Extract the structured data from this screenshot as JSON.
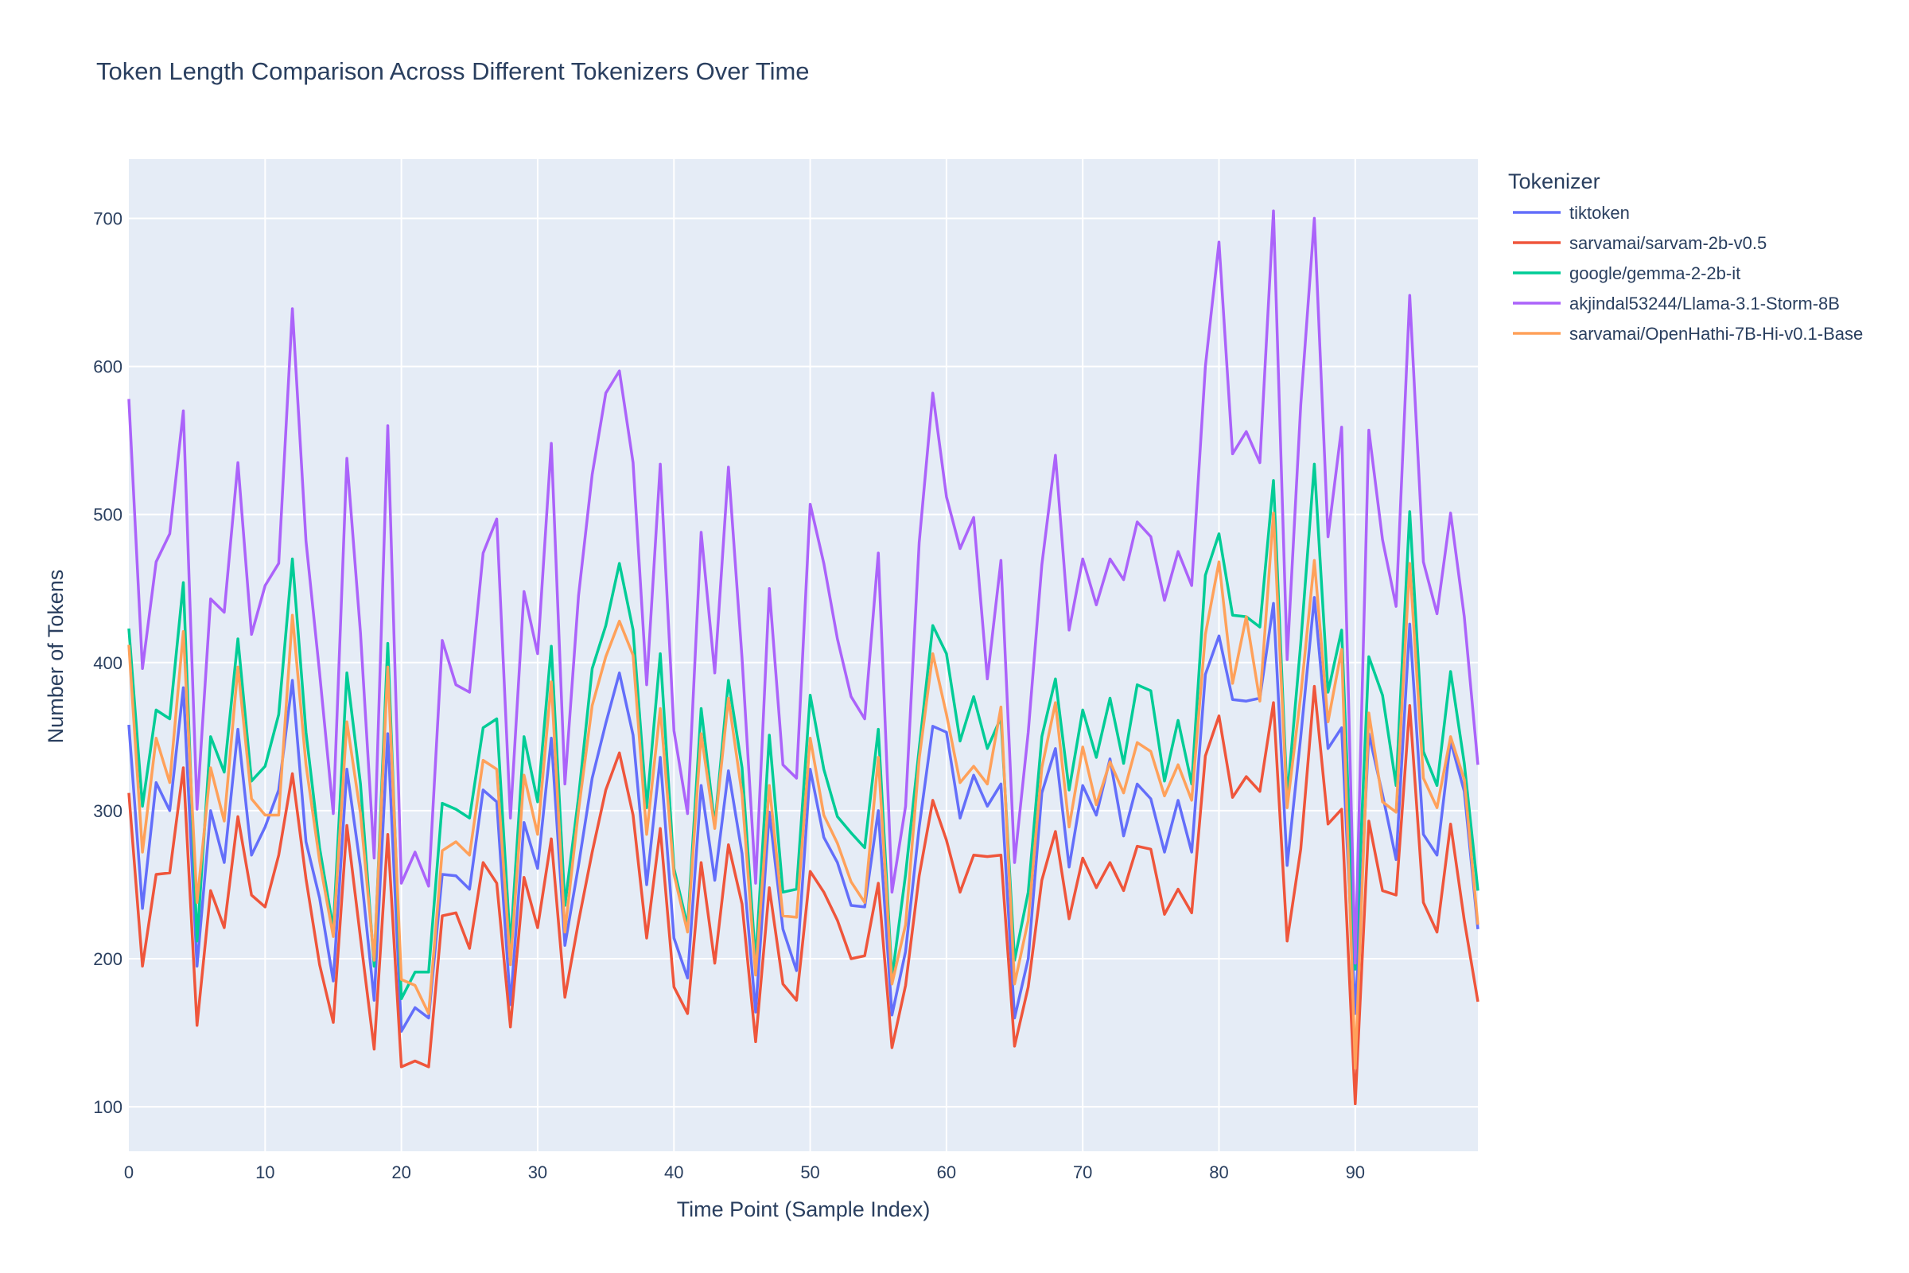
{
  "chart_data": {
    "type": "line",
    "title": "Token Length Comparison Across Different Tokenizers Over Time",
    "xlabel": "Time Point (Sample Index)",
    "ylabel": "Number of Tokens",
    "xlim": [
      0,
      99
    ],
    "ylim": [
      70,
      740
    ],
    "xticks": [
      0,
      10,
      20,
      30,
      40,
      50,
      60,
      70,
      80,
      90
    ],
    "yticks": [
      100,
      200,
      300,
      400,
      500,
      600,
      700
    ],
    "grid": true,
    "plot_bgcolor": "#e5ecf6",
    "grid_color": "#ffffff",
    "legend_title": "Tokenizer",
    "legend_position": "right",
    "series": [
      {
        "name": "tiktoken",
        "color": "#636efa",
        "values": [
          358,
          234,
          319,
          300,
          383,
          195,
          300,
          265,
          355,
          270,
          289,
          314,
          388,
          279,
          241,
          185,
          328,
          262,
          172,
          352,
          151,
          167,
          160,
          257,
          256,
          247,
          314,
          306,
          169,
          292,
          261,
          349,
          209,
          263,
          322,
          359,
          393,
          351,
          250,
          336,
          214,
          187,
          317,
          253,
          327,
          271,
          164,
          299,
          220,
          192,
          328,
          282,
          265,
          236,
          235,
          300,
          162,
          205,
          289,
          357,
          353,
          295,
          324,
          303,
          318,
          160,
          200,
          312,
          342,
          262,
          317,
          297,
          335,
          283,
          318,
          308,
          272,
          307,
          272,
          392,
          418,
          375,
          374,
          376,
          440,
          263,
          350,
          444,
          342,
          356,
          163,
          352,
          311,
          267,
          426,
          284,
          270,
          347,
          313,
          220
        ]
      },
      {
        "name": "sarvamai/sarvam-2b-v0.5",
        "color": "#ef553b",
        "values": [
          312,
          195,
          257,
          258,
          329,
          155,
          246,
          221,
          296,
          243,
          235,
          270,
          325,
          254,
          196,
          157,
          290,
          214,
          139,
          284,
          127,
          131,
          127,
          229,
          231,
          207,
          265,
          251,
          154,
          255,
          221,
          281,
          174,
          225,
          272,
          314,
          339,
          297,
          214,
          288,
          181,
          163,
          265,
          197,
          277,
          237,
          144,
          248,
          183,
          172,
          259,
          245,
          226,
          200,
          202,
          251,
          140,
          182,
          256,
          307,
          280,
          245,
          270,
          269,
          270,
          141,
          181,
          253,
          286,
          227,
          268,
          248,
          265,
          246,
          276,
          274,
          230,
          247,
          231,
          337,
          364,
          309,
          323,
          313,
          373,
          212,
          274,
          384,
          291,
          301,
          102,
          293,
          246,
          243,
          371,
          238,
          218,
          291,
          226,
          171
        ]
      },
      {
        "name": "google/gemma-2-2b-it",
        "color": "#00cc96",
        "values": [
          423,
          303,
          368,
          362,
          454,
          212,
          350,
          326,
          416,
          320,
          330,
          365,
          470,
          353,
          275,
          220,
          393,
          318,
          195,
          413,
          173,
          191,
          191,
          305,
          301,
          295,
          356,
          362,
          208,
          350,
          306,
          411,
          236,
          309,
          396,
          425,
          467,
          422,
          302,
          406,
          261,
          222,
          369,
          290,
          388,
          329,
          198,
          351,
          245,
          247,
          378,
          328,
          296,
          285,
          275,
          355,
          187,
          257,
          342,
          425,
          406,
          347,
          377,
          342,
          363,
          199,
          245,
          350,
          389,
          314,
          368,
          336,
          376,
          332,
          385,
          381,
          320,
          361,
          318,
          459,
          487,
          432,
          431,
          424,
          523,
          308,
          413,
          534,
          380,
          422,
          193,
          404,
          378,
          317,
          502,
          340,
          317,
          394,
          332,
          246
        ]
      },
      {
        "name": "akjindal53244/Llama-3.1-Storm-8B",
        "color": "#ab63fa",
        "values": [
          578,
          396,
          468,
          487,
          570,
          301,
          443,
          434,
          535,
          419,
          452,
          467,
          639,
          482,
          393,
          298,
          538,
          420,
          268,
          560,
          251,
          272,
          249,
          415,
          385,
          380,
          474,
          497,
          295,
          448,
          406,
          548,
          318,
          445,
          527,
          582,
          597,
          535,
          385,
          534,
          354,
          298,
          488,
          393,
          532,
          403,
          251,
          450,
          331,
          322,
          507,
          467,
          416,
          377,
          362,
          474,
          245,
          303,
          481,
          582,
          512,
          477,
          498,
          389,
          469,
          265,
          353,
          466,
          540,
          422,
          470,
          439,
          470,
          456,
          495,
          485,
          442,
          475,
          452,
          600,
          684,
          541,
          556,
          535,
          705,
          402,
          574,
          700,
          485,
          559,
          197,
          557,
          483,
          438,
          648,
          468,
          433,
          501,
          431,
          331
        ]
      },
      {
        "name": "sarvamai/OpenHathi-7B-Hi-v0.1-Base",
        "color": "#ffa15a",
        "values": [
          412,
          272,
          349,
          319,
          421,
          238,
          329,
          293,
          397,
          308,
          297,
          297,
          432,
          331,
          266,
          215,
          360,
          298,
          199,
          397,
          186,
          182,
          163,
          273,
          279,
          270,
          334,
          328,
          196,
          324,
          284,
          387,
          218,
          300,
          371,
          404,
          428,
          405,
          284,
          369,
          257,
          218,
          352,
          288,
          376,
          311,
          189,
          317,
          229,
          228,
          349,
          297,
          278,
          252,
          238,
          336,
          183,
          223,
          335,
          406,
          365,
          319,
          330,
          318,
          370,
          183,
          226,
          329,
          373,
          289,
          343,
          304,
          333,
          312,
          346,
          340,
          310,
          331,
          307,
          419,
          468,
          386,
          431,
          374,
          501,
          302,
          378,
          469,
          360,
          409,
          126,
          366,
          306,
          299,
          467,
          322,
          302,
          350,
          321,
          223
        ]
      }
    ]
  }
}
